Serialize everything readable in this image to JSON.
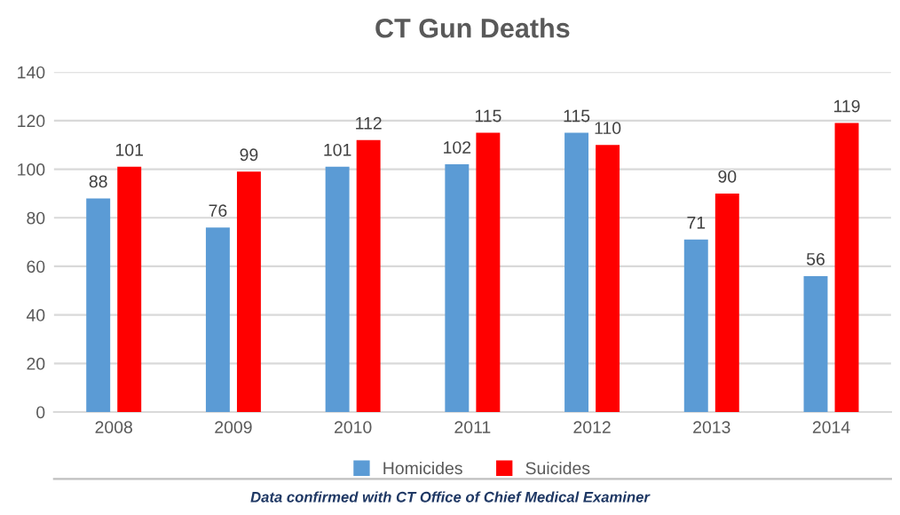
{
  "chart_data": {
    "type": "bar",
    "title": "CT Gun Deaths",
    "categories": [
      "2008",
      "2009",
      "2010",
      "2011",
      "2012",
      "2013",
      "2014"
    ],
    "series": [
      {
        "name": "Homicides",
        "color": "#5b9bd5",
        "values": [
          88,
          76,
          101,
          102,
          115,
          71,
          56
        ]
      },
      {
        "name": "Suicides",
        "color": "#ff0000",
        "values": [
          101,
          99,
          112,
          115,
          110,
          90,
          119
        ]
      }
    ],
    "ylim": [
      0,
      140
    ],
    "yticks": [
      0,
      20,
      40,
      60,
      80,
      100,
      120,
      140
    ],
    "grid": "y",
    "legend": "bottom",
    "data_labels": true,
    "annotations": [
      "Data confirmed with CT Office of Chief Medical Examiner"
    ]
  }
}
